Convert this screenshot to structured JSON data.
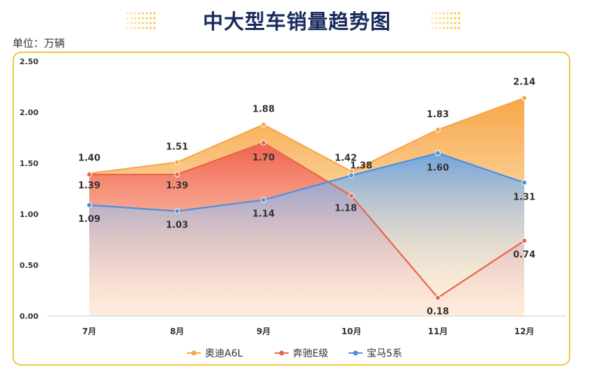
{
  "title": "中大型车销量趋势图",
  "unit_label": "单位：万辆",
  "colors": {
    "audi": "#f5a84c",
    "benz": "#e8664a",
    "bmw": "#4a90e2",
    "border": "#f2c53d",
    "title": "#1a2a5e"
  },
  "chart_data": {
    "type": "area",
    "categories": [
      "7月",
      "8月",
      "9月",
      "10月",
      "11月",
      "12月"
    ],
    "y_ticks": [
      "0.00",
      "0.50",
      "1.00",
      "1.50",
      "2.00",
      "2.50"
    ],
    "ylim": [
      0,
      2.5
    ],
    "grid": false,
    "legend_position": "bottom",
    "series": [
      {
        "name": "奥迪A6L",
        "values": [
          1.4,
          1.51,
          1.88,
          1.42,
          1.83,
          2.14
        ],
        "labels": [
          "1.40",
          "1.51",
          "1.88",
          "1.42",
          "1.83",
          "2.14"
        ]
      },
      {
        "name": "奔驰E级",
        "values": [
          1.39,
          1.39,
          1.7,
          1.18,
          0.18,
          0.74
        ],
        "labels": [
          "1.39",
          "1.39",
          "1.70",
          "1.18",
          "0.18",
          "0.74"
        ]
      },
      {
        "name": "宝马5系",
        "values": [
          1.09,
          1.03,
          1.14,
          1.38,
          1.6,
          1.31
        ],
        "labels": [
          "1.09",
          "1.03",
          "1.14",
          "1.38",
          "1.60",
          "1.31"
        ]
      }
    ]
  }
}
